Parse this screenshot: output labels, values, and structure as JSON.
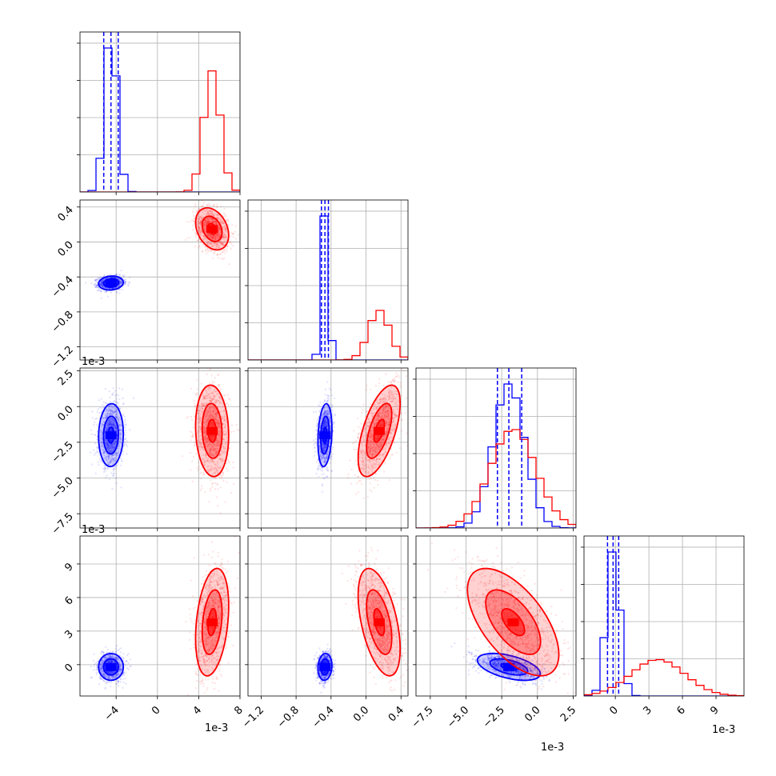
{
  "colors": {
    "series_a": "#0000ff",
    "series_b": "#ff0000",
    "grid": "#b0b0b0"
  },
  "chart_data": {
    "type": "corner",
    "legend": "none",
    "grid": true,
    "exponent_labels": [
      "1e-3",
      "1e-3",
      "1e-3",
      "1e-3",
      "1e-3"
    ],
    "variables": [
      {
        "range": [
          -7.5,
          8
        ],
        "ticks": [
          -4,
          0,
          4,
          8
        ],
        "tick_labels": [
          "−4",
          "0",
          "4",
          "8"
        ]
      },
      {
        "range": [
          -1.35,
          0.48
        ],
        "ticks": [
          -1.2,
          -0.8,
          -0.4,
          0.0,
          0.4
        ],
        "tick_labels": [
          "−1.2",
          "−0.8",
          "−0.4",
          "0.0",
          "0.4"
        ]
      },
      {
        "range": [
          -8.5,
          2.7
        ],
        "ticks": [
          -7.5,
          -5.0,
          -2.5,
          0.0,
          2.5
        ],
        "tick_labels": [
          "−7.5",
          "−5.0",
          "−2.5",
          "0.0",
          "2.5"
        ]
      },
      {
        "range": [
          -2.8,
          11.5
        ],
        "ticks": [
          0,
          3,
          6,
          9
        ],
        "tick_labels": [
          "0",
          "3",
          "6",
          "9"
        ]
      }
    ],
    "series": [
      {
        "color": "#0000ff",
        "means": [
          -4.5,
          -0.47,
          -2.0,
          -0.2
        ],
        "sds": [
          0.6,
          0.04,
          1.1,
          0.6
        ],
        "quantiles": [
          [
            -5.2,
            -4.5,
            -3.8
          ],
          [
            -0.51,
            -0.47,
            -0.43
          ],
          [
            -2.8,
            -2.0,
            -1.1
          ],
          [
            -0.7,
            -0.2,
            0.3
          ]
        ],
        "correlations": [
          [
            0,
            1,
            0.1
          ],
          [
            0,
            2,
            0.05
          ],
          [
            0,
            3,
            0.0
          ],
          [
            1,
            2,
            0.2
          ],
          [
            1,
            3,
            0.1
          ],
          [
            2,
            3,
            -0.5
          ]
        ]
      },
      {
        "color": "#ff0000",
        "means": [
          5.3,
          0.15,
          -1.7,
          3.8
        ],
        "sds": [
          0.8,
          0.12,
          1.6,
          2.4
        ],
        "quantiles": [
          [
            4.6,
            5.3,
            6.0
          ],
          [
            0.0,
            0.15,
            0.27
          ],
          [
            -3.2,
            -1.7,
            -0.3
          ],
          [
            1.8,
            3.8,
            6.5
          ]
        ],
        "correlations": [
          [
            0,
            1,
            -0.3
          ],
          [
            0,
            2,
            -0.1
          ],
          [
            0,
            3,
            0.3
          ],
          [
            1,
            2,
            0.6
          ],
          [
            1,
            3,
            -0.5
          ],
          [
            2,
            3,
            -0.6
          ]
        ]
      }
    ],
    "hist_bins": 20
  }
}
